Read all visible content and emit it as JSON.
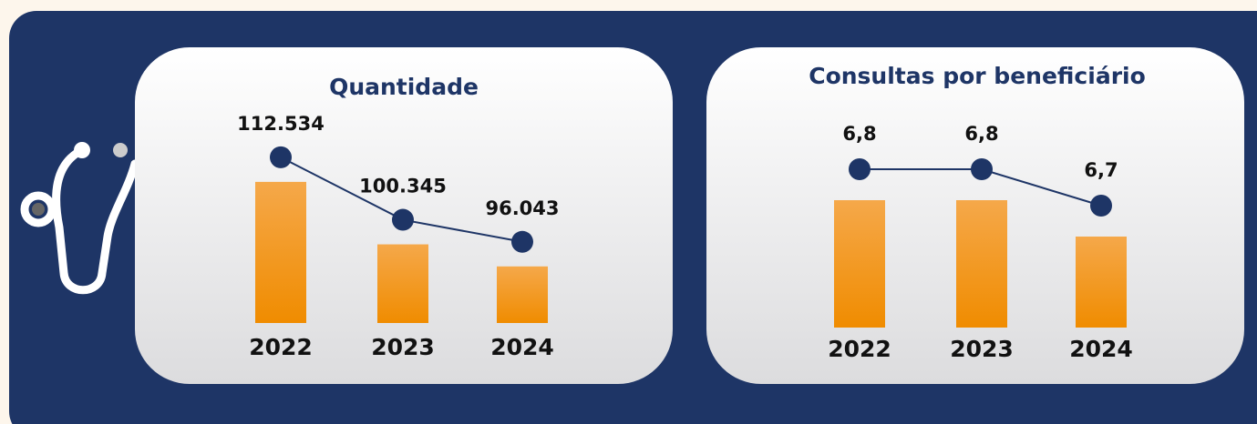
{
  "chart_data": [
    {
      "type": "bar-line",
      "title": "Quantidade",
      "categories": [
        "2022",
        "2023",
        "2024"
      ],
      "values": [
        112534,
        100345,
        96043
      ],
      "value_labels": [
        "112.534",
        "100.345",
        "96.043"
      ],
      "color": "#f29a20",
      "line_color": "#1e3566",
      "ylim": [
        85000,
        115000
      ]
    },
    {
      "type": "bar-line",
      "title": "Consultas por beneficiário",
      "categories": [
        "2022",
        "2023",
        "2024"
      ],
      "values": [
        6.8,
        6.8,
        6.7
      ],
      "value_labels": [
        "6,8",
        "6,8",
        "6,7"
      ],
      "color": "#f29a20",
      "line_color": "#1e3566",
      "ylim": [
        6.45,
        6.85
      ]
    }
  ]
}
